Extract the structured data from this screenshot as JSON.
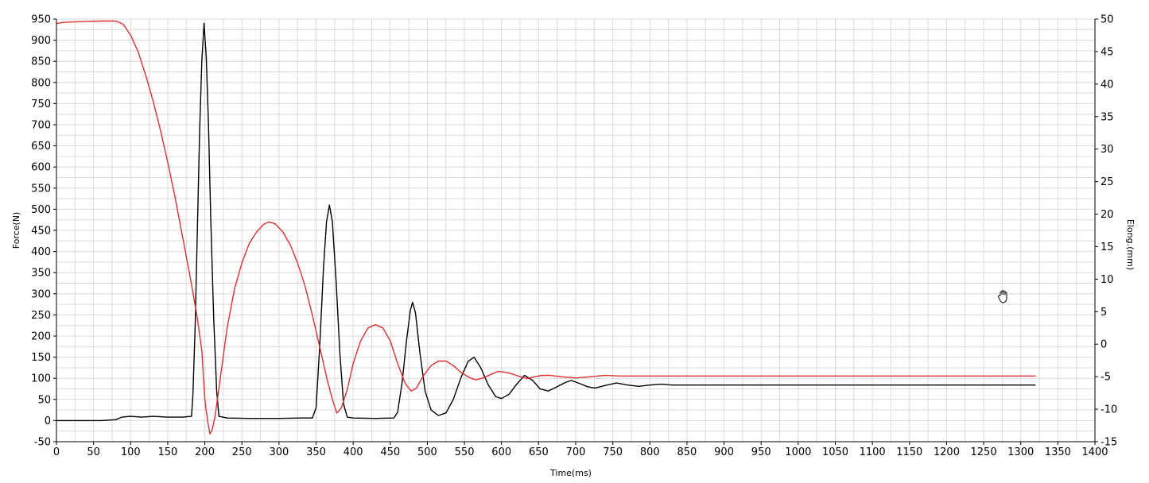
{
  "colors": {
    "force": "#000000",
    "elong": "#e03030",
    "grid": "#d9d9d9",
    "axis": "#000000",
    "background": "#ffffff"
  },
  "cursor": {
    "icon": "hand-pan-icon"
  },
  "chart_data": {
    "type": "line",
    "title": "",
    "xlabel": "Time(ms)",
    "ylabel": "Force(N)",
    "y2label": "Elong.(mm)",
    "xlim": [
      0,
      1400
    ],
    "ylim": [
      -50,
      950
    ],
    "y2lim": [
      -15,
      50
    ],
    "grid": true,
    "x_ticks": [
      "0",
      "50",
      "100",
      "150",
      "200",
      "250",
      "300",
      "350",
      "400",
      "450",
      "500",
      "550",
      "600",
      "650",
      "700",
      "750",
      "800",
      "850",
      "900",
      "950",
      "1000",
      "1050",
      "1100",
      "1150",
      "1200",
      "1250",
      "1300",
      "1350",
      "1400"
    ],
    "y_ticks": [
      "-50",
      "0",
      "50",
      "100",
      "150",
      "200",
      "250",
      "300",
      "350",
      "400",
      "450",
      "500",
      "550",
      "600",
      "650",
      "700",
      "750",
      "800",
      "850",
      "900",
      "950"
    ],
    "y2_ticks": [
      "-15",
      "-10",
      "-5",
      "0",
      "5",
      "10",
      "15",
      "20",
      "25",
      "30",
      "35",
      "40",
      "45",
      "50"
    ],
    "series": [
      {
        "axis": "left",
        "color": "#000000",
        "points": [
          [
            0,
            0
          ],
          [
            30,
            0
          ],
          [
            60,
            0
          ],
          [
            80,
            2
          ],
          [
            88,
            8
          ],
          [
            100,
            10
          ],
          [
            115,
            8
          ],
          [
            130,
            10
          ],
          [
            150,
            8
          ],
          [
            170,
            8
          ],
          [
            182,
            10
          ],
          [
            184,
            60
          ],
          [
            187,
            220
          ],
          [
            190,
            450
          ],
          [
            193,
            680
          ],
          [
            196,
            850
          ],
          [
            199,
            940
          ],
          [
            202,
            860
          ],
          [
            205,
            700
          ],
          [
            208,
            480
          ],
          [
            212,
            240
          ],
          [
            216,
            70
          ],
          [
            219,
            10
          ],
          [
            230,
            6
          ],
          [
            260,
            5
          ],
          [
            300,
            5
          ],
          [
            330,
            6
          ],
          [
            345,
            6
          ],
          [
            350,
            30
          ],
          [
            355,
            180
          ],
          [
            360,
            360
          ],
          [
            364,
            470
          ],
          [
            368,
            510
          ],
          [
            372,
            470
          ],
          [
            377,
            330
          ],
          [
            382,
            160
          ],
          [
            387,
            40
          ],
          [
            392,
            8
          ],
          [
            400,
            6
          ],
          [
            430,
            5
          ],
          [
            455,
            6
          ],
          [
            460,
            20
          ],
          [
            466,
            90
          ],
          [
            472,
            190
          ],
          [
            477,
            260
          ],
          [
            480,
            280
          ],
          [
            484,
            255
          ],
          [
            490,
            160
          ],
          [
            497,
            70
          ],
          [
            505,
            25
          ],
          [
            515,
            12
          ],
          [
            525,
            18
          ],
          [
            535,
            50
          ],
          [
            545,
            100
          ],
          [
            555,
            140
          ],
          [
            563,
            150
          ],
          [
            572,
            125
          ],
          [
            582,
            85
          ],
          [
            592,
            57
          ],
          [
            600,
            52
          ],
          [
            610,
            62
          ],
          [
            620,
            85
          ],
          [
            631,
            107
          ],
          [
            642,
            95
          ],
          [
            652,
            75
          ],
          [
            663,
            70
          ],
          [
            675,
            80
          ],
          [
            686,
            90
          ],
          [
            694,
            95
          ],
          [
            705,
            88
          ],
          [
            716,
            80
          ],
          [
            726,
            77
          ],
          [
            740,
            83
          ],
          [
            755,
            89
          ],
          [
            770,
            84
          ],
          [
            785,
            81
          ],
          [
            800,
            84
          ],
          [
            815,
            86
          ],
          [
            830,
            84
          ],
          [
            850,
            84
          ],
          [
            900,
            84
          ],
          [
            1000,
            84
          ],
          [
            1100,
            84
          ],
          [
            1200,
            84
          ],
          [
            1320,
            84
          ]
        ]
      },
      {
        "axis": "right",
        "color": "#e03030",
        "points": [
          [
            0,
            49.3
          ],
          [
            10,
            49.5
          ],
          [
            30,
            49.6
          ],
          [
            60,
            49.7
          ],
          [
            80,
            49.7
          ],
          [
            90,
            49.2
          ],
          [
            100,
            47.5
          ],
          [
            110,
            45.0
          ],
          [
            120,
            41.5
          ],
          [
            130,
            37.5
          ],
          [
            140,
            33.0
          ],
          [
            150,
            28.0
          ],
          [
            160,
            22.5
          ],
          [
            170,
            16.5
          ],
          [
            180,
            10.5
          ],
          [
            190,
            4.0
          ],
          [
            196,
            -1.0
          ],
          [
            200,
            -8.5
          ],
          [
            204,
            -12.0
          ],
          [
            207,
            -13.8
          ],
          [
            210,
            -13.2
          ],
          [
            214,
            -11.0
          ],
          [
            220,
            -6.0
          ],
          [
            230,
            2.5
          ],
          [
            240,
            8.5
          ],
          [
            250,
            12.5
          ],
          [
            260,
            15.5
          ],
          [
            270,
            17.3
          ],
          [
            280,
            18.5
          ],
          [
            287,
            18.8
          ],
          [
            295,
            18.5
          ],
          [
            305,
            17.3
          ],
          [
            315,
            15.3
          ],
          [
            325,
            12.5
          ],
          [
            335,
            9.0
          ],
          [
            345,
            4.5
          ],
          [
            355,
            -0.5
          ],
          [
            365,
            -5.5
          ],
          [
            372,
            -8.5
          ],
          [
            378,
            -10.6
          ],
          [
            384,
            -9.8
          ],
          [
            392,
            -7.0
          ],
          [
            400,
            -3.0
          ],
          [
            410,
            0.5
          ],
          [
            420,
            2.5
          ],
          [
            430,
            3.0
          ],
          [
            440,
            2.5
          ],
          [
            450,
            0.5
          ],
          [
            460,
            -3.0
          ],
          [
            470,
            -6.0
          ],
          [
            478,
            -7.2
          ],
          [
            485,
            -6.8
          ],
          [
            495,
            -4.8
          ],
          [
            505,
            -3.3
          ],
          [
            515,
            -2.6
          ],
          [
            525,
            -2.6
          ],
          [
            535,
            -3.3
          ],
          [
            545,
            -4.3
          ],
          [
            556,
            -5.1
          ],
          [
            565,
            -5.5
          ],
          [
            575,
            -5.2
          ],
          [
            585,
            -4.7
          ],
          [
            595,
            -4.2
          ],
          [
            605,
            -4.3
          ],
          [
            615,
            -4.6
          ],
          [
            625,
            -5.0
          ],
          [
            635,
            -5.3
          ],
          [
            645,
            -5.0
          ],
          [
            655,
            -4.8
          ],
          [
            665,
            -4.8
          ],
          [
            680,
            -5.0
          ],
          [
            700,
            -5.2
          ],
          [
            720,
            -5.0
          ],
          [
            740,
            -4.8
          ],
          [
            760,
            -4.9
          ],
          [
            780,
            -4.9
          ],
          [
            800,
            -4.9
          ],
          [
            900,
            -4.9
          ],
          [
            1000,
            -4.9
          ],
          [
            1100,
            -4.9
          ],
          [
            1200,
            -4.9
          ],
          [
            1320,
            -4.9
          ]
        ]
      }
    ]
  }
}
